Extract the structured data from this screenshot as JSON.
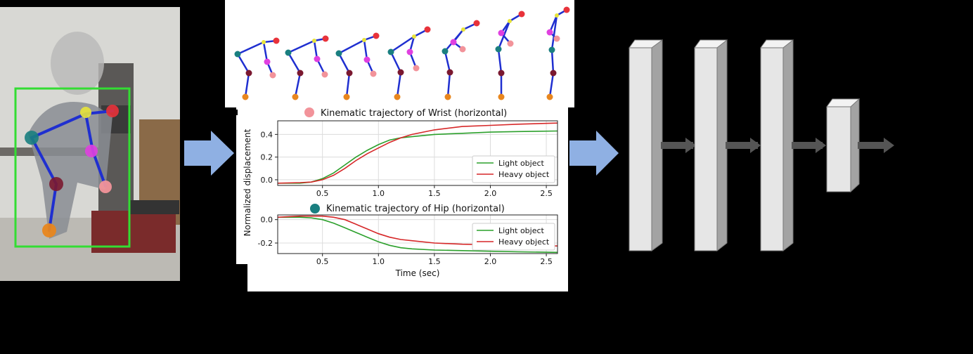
{
  "colors": {
    "background": "#000000",
    "arrow": "#8fb0e3",
    "box_face": "#e6e6e6",
    "box_side": "#a3a3a3",
    "connector": "#555555",
    "light_object": "#2ca02c",
    "heavy_object": "#d62728",
    "bbox": "#33dd33",
    "skeleton": "#1f2fd0",
    "wrist_marker": "#f2939a",
    "hip_marker": "#1a7f80"
  },
  "icons": {
    "video_frame": "person-lifting-photo",
    "pose_sequence": "stick-figure-icon",
    "network": "layer-block-icon"
  },
  "chart_data": [
    {
      "type": "line",
      "title": "Kinematic trajectory of Wrist (horizontal)",
      "title_marker_color": "#f2939a",
      "xlabel": "",
      "ylabel": "Normalized displacement",
      "xlim": [
        0.1,
        2.6
      ],
      "ylim": [
        -0.05,
        0.52
      ],
      "xticks": [
        "0.5",
        "1.0",
        "1.5",
        "2.0",
        "2.5"
      ],
      "yticks": [
        "0.0",
        "0.2",
        "0.4"
      ],
      "grid": true,
      "legend_position": "lower-right",
      "series": [
        {
          "name": "Light object",
          "color": "#2ca02c",
          "x": [
            0.1,
            0.3,
            0.4,
            0.5,
            0.6,
            0.7,
            0.8,
            0.9,
            1.0,
            1.1,
            1.2,
            1.3,
            1.5,
            1.75,
            2.0,
            2.25,
            2.6
          ],
          "y": [
            -0.03,
            -0.03,
            -0.02,
            0.01,
            0.06,
            0.13,
            0.2,
            0.26,
            0.31,
            0.35,
            0.37,
            0.38,
            0.4,
            0.41,
            0.42,
            0.425,
            0.43
          ]
        },
        {
          "name": "Heavy object",
          "color": "#d62728",
          "x": [
            0.1,
            0.3,
            0.4,
            0.5,
            0.6,
            0.7,
            0.8,
            0.9,
            1.0,
            1.1,
            1.2,
            1.3,
            1.5,
            1.75,
            2.0,
            2.25,
            2.6
          ],
          "y": [
            -0.03,
            -0.025,
            -0.02,
            0.0,
            0.04,
            0.1,
            0.17,
            0.23,
            0.28,
            0.33,
            0.37,
            0.4,
            0.44,
            0.47,
            0.48,
            0.49,
            0.5
          ]
        }
      ]
    },
    {
      "type": "line",
      "title": "Kinematic trajectory of Hip (horizontal)",
      "title_marker_color": "#1a7f80",
      "xlabel": "Time (sec)",
      "ylabel": "",
      "xlim": [
        0.1,
        2.6
      ],
      "ylim": [
        -0.29,
        0.04
      ],
      "xticks": [
        "0.5",
        "1.0",
        "1.5",
        "2.0",
        "2.5"
      ],
      "yticks": [
        "0.0",
        "-0.2"
      ],
      "grid": true,
      "legend_position": "upper-right",
      "series": [
        {
          "name": "Light object",
          "color": "#2ca02c",
          "x": [
            0.1,
            0.3,
            0.4,
            0.5,
            0.6,
            0.7,
            0.8,
            0.9,
            1.0,
            1.1,
            1.2,
            1.3,
            1.5,
            1.75,
            2.0,
            2.25,
            2.6
          ],
          "y": [
            0.02,
            0.02,
            0.015,
            0.0,
            -0.03,
            -0.07,
            -0.11,
            -0.15,
            -0.19,
            -0.22,
            -0.24,
            -0.25,
            -0.26,
            -0.265,
            -0.27,
            -0.275,
            -0.28
          ]
        },
        {
          "name": "Heavy object",
          "color": "#d62728",
          "x": [
            0.1,
            0.3,
            0.4,
            0.5,
            0.6,
            0.7,
            0.8,
            0.9,
            1.0,
            1.1,
            1.2,
            1.3,
            1.5,
            1.75,
            2.0,
            2.25,
            2.6
          ],
          "y": [
            0.02,
            0.03,
            0.03,
            0.03,
            0.02,
            0.0,
            -0.04,
            -0.08,
            -0.12,
            -0.15,
            -0.17,
            -0.18,
            -0.2,
            -0.21,
            -0.215,
            -0.22,
            -0.225
          ]
        }
      ]
    }
  ]
}
